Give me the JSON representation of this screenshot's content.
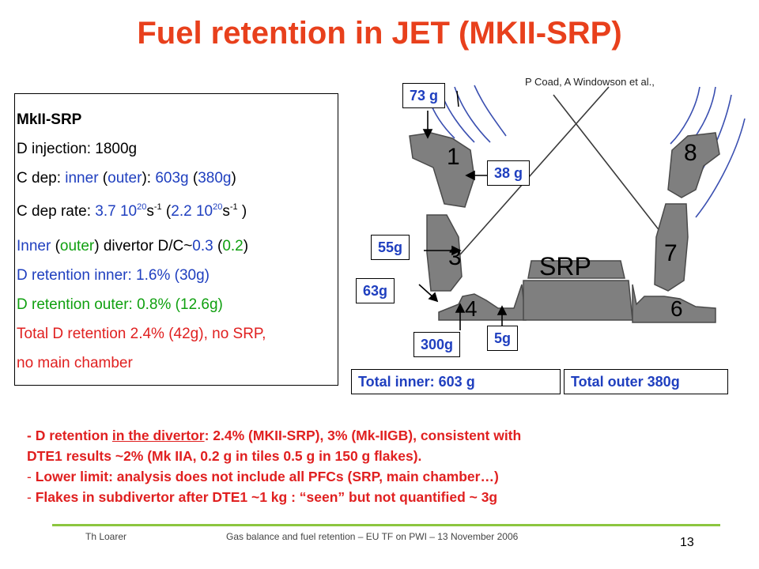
{
  "title": "Fuel retention in JET (MKII-SRP)",
  "left_panel": {
    "heading": "MkII-SRP",
    "d_injection": "D injection: 1800g",
    "cdep": {
      "prefix": "C dep: ",
      "inner": "inner",
      "sep1": " (",
      "outer": "outer",
      "sep2": "): ",
      "v_inner": "603g",
      "sep3": " (",
      "v_outer": "380g",
      "end": ")"
    },
    "cdep_rate": {
      "prefix": "C dep rate: ",
      "inner_mant": "3.7 10",
      "inner_exp": "20",
      "inner_unit": "s",
      "inner_unit_exp": "-1",
      "mid": " (",
      "outer_mant": "2.2 10",
      "outer_exp": "20",
      "outer_unit": "s",
      "outer_unit_exp": "-1",
      "end": " )"
    },
    "dc": {
      "inner": "Inner",
      "sep1": " (",
      "outer": "outer",
      "mid": ") divertor D/C~",
      "v_inner": "0.3",
      "sep2": " (",
      "v_outer": "0.2",
      "end": ")"
    },
    "d_ret_inner": "D retention inner: 1.6% (30g)",
    "d_ret_outer": "D retention outer: 0.8% (12.6g)",
    "total_1": "Total D retention 2.4% (42g), no SRP,",
    "total_2": "no main chamber"
  },
  "diagram": {
    "credit": "P Coad, A Windowson et al.,",
    "srp_label": "SRP",
    "tile_numbers": [
      "1",
      "3",
      "4",
      "6",
      "7",
      "8"
    ],
    "labels": {
      "l73": "73 g",
      "l38": "38 g",
      "l55": "55g",
      "l63": "63g",
      "l300": "300g",
      "l5": "5g",
      "total_inner": "Total inner: 603 g",
      "total_outer": "Total outer 380g"
    }
  },
  "bullets": {
    "b1_a": "- D retention ",
    "b1_u": "in the divertor",
    "b1_b": ": 2.4% (MKII-SRP), 3% (Mk-IIGB), consistent with",
    "b1_c": "DTE1 results ~2% (Mk IIA, 0.2 g in tiles 0.5 g in 150 g flakes).",
    "b2": "Lower limit: analysis does not include all PFCs (SRP, main chamber…)",
    "b3": "Flakes in subdivertor after DTE1 ~1 kg : “seen” but not quantified ~ 3g"
  },
  "footer": {
    "author": "Th Loarer",
    "event": "Gas balance and fuel retention – EU TF on PWI – 13 November 2006",
    "page": "13"
  },
  "colors": {
    "title": "#e8401c",
    "blue": "#1f3fbf",
    "green": "#10a010",
    "red": "#e02020",
    "rule": "#8cc63f",
    "tile": "#7f7f7f"
  }
}
